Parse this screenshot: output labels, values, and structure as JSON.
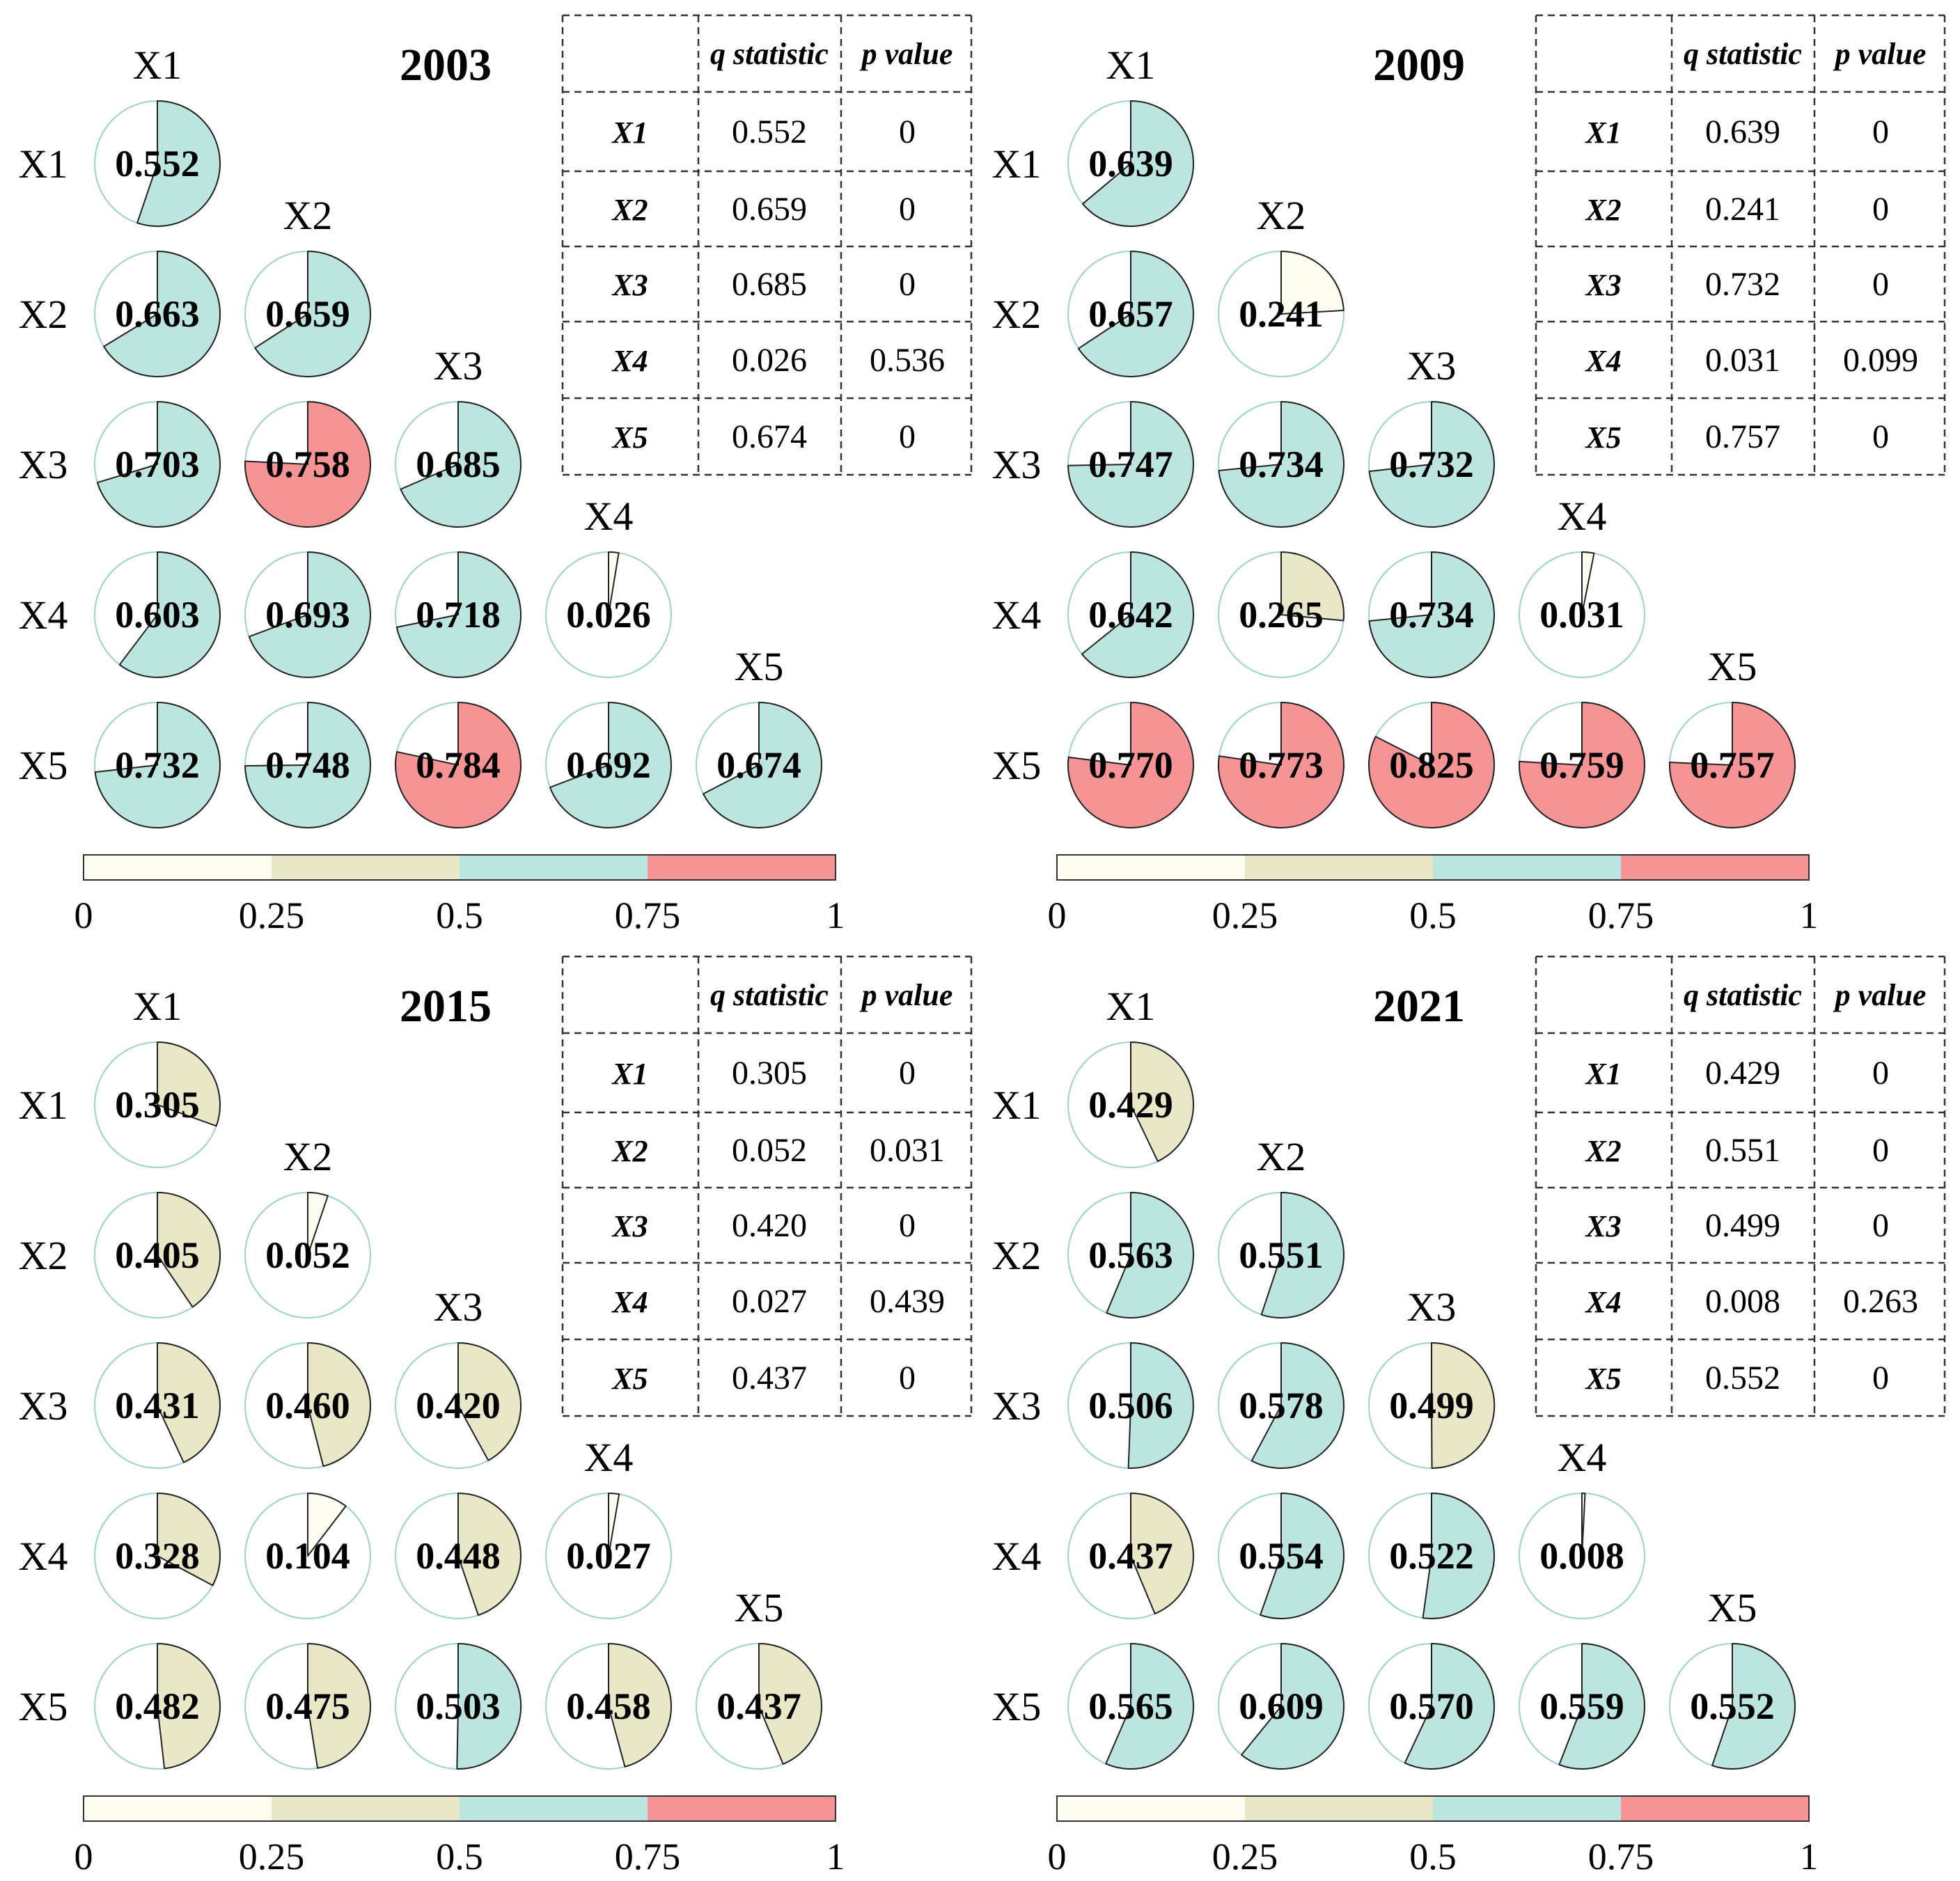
{
  "chart_data": [
    {
      "type": "pie-matrix",
      "title": "2003",
      "variables": [
        "X1",
        "X2",
        "X3",
        "X4",
        "X5"
      ],
      "matrix": [
        [
          0.552
        ],
        [
          0.663,
          0.659
        ],
        [
          0.703,
          0.758,
          0.685
        ],
        [
          0.603,
          0.693,
          0.718,
          0.026
        ],
        [
          0.732,
          0.748,
          0.784,
          0.692,
          0.674
        ]
      ],
      "matrix_labels": [
        [
          "0.552"
        ],
        [
          "0.663",
          "0.659"
        ],
        [
          "0.703",
          "0.758",
          "0.685"
        ],
        [
          "0.603",
          "0.693",
          "0.718",
          "0.026"
        ],
        [
          "0.732",
          "0.748",
          "0.784",
          "0.692",
          "0.674"
        ]
      ],
      "table": {
        "headers": [
          "",
          "q statistic",
          "p value"
        ],
        "rows": [
          [
            "X1",
            "0.552",
            "0"
          ],
          [
            "X2",
            "0.659",
            "0"
          ],
          [
            "X3",
            "0.685",
            "0"
          ],
          [
            "X4",
            "0.026",
            "0.536"
          ],
          [
            "X5",
            "0.674",
            "0"
          ]
        ]
      }
    },
    {
      "type": "pie-matrix",
      "title": "2009",
      "variables": [
        "X1",
        "X2",
        "X3",
        "X4",
        "X5"
      ],
      "matrix": [
        [
          0.639
        ],
        [
          0.657,
          0.241
        ],
        [
          0.747,
          0.734,
          0.732
        ],
        [
          0.642,
          0.265,
          0.734,
          0.031
        ],
        [
          0.77,
          0.773,
          0.825,
          0.759,
          0.757
        ]
      ],
      "matrix_labels": [
        [
          "0.639"
        ],
        [
          "0.657",
          "0.241"
        ],
        [
          "0.747",
          "0.734",
          "0.732"
        ],
        [
          "0.642",
          "0.265",
          "0.734",
          "0.031"
        ],
        [
          "0.770",
          "0.773",
          "0.825",
          "0.759",
          "0.757"
        ]
      ],
      "table": {
        "headers": [
          "",
          "q statistic",
          "p value"
        ],
        "rows": [
          [
            "X1",
            "0.639",
            "0"
          ],
          [
            "X2",
            "0.241",
            "0"
          ],
          [
            "X3",
            "0.732",
            "0"
          ],
          [
            "X4",
            "0.031",
            "0.099"
          ],
          [
            "X5",
            "0.757",
            "0"
          ]
        ]
      }
    },
    {
      "type": "pie-matrix",
      "title": "2015",
      "variables": [
        "X1",
        "X2",
        "X3",
        "X4",
        "X5"
      ],
      "matrix": [
        [
          0.305
        ],
        [
          0.405,
          0.052
        ],
        [
          0.431,
          0.46,
          0.42
        ],
        [
          0.328,
          0.104,
          0.448,
          0.027
        ],
        [
          0.482,
          0.475,
          0.503,
          0.458,
          0.437
        ]
      ],
      "matrix_labels": [
        [
          "0.305"
        ],
        [
          "0.405",
          "0.052"
        ],
        [
          "0.431",
          "0.460",
          "0.420"
        ],
        [
          "0.328",
          "0.104",
          "0.448",
          "0.027"
        ],
        [
          "0.482",
          "0.475",
          "0.503",
          "0.458",
          "0.437"
        ]
      ],
      "table": {
        "headers": [
          "",
          "q statistic",
          "p value"
        ],
        "rows": [
          [
            "X1",
            "0.305",
            "0"
          ],
          [
            "X2",
            "0.052",
            "0.031"
          ],
          [
            "X3",
            "0.420",
            "0"
          ],
          [
            "X4",
            "0.027",
            "0.439"
          ],
          [
            "X5",
            "0.437",
            "0"
          ]
        ]
      }
    },
    {
      "type": "pie-matrix",
      "title": "2021",
      "variables": [
        "X1",
        "X2",
        "X3",
        "X4",
        "X5"
      ],
      "matrix": [
        [
          0.429
        ],
        [
          0.563,
          0.551
        ],
        [
          0.506,
          0.578,
          0.499
        ],
        [
          0.437,
          0.554,
          0.522,
          0.008
        ],
        [
          0.565,
          0.609,
          0.57,
          0.559,
          0.552
        ]
      ],
      "matrix_labels": [
        [
          "0.429"
        ],
        [
          "0.563",
          "0.551"
        ],
        [
          "0.506",
          "0.578",
          "0.499"
        ],
        [
          "0.437",
          "0.554",
          "0.522",
          "0.008"
        ],
        [
          "0.565",
          "0.609",
          "0.570",
          "0.559",
          "0.552"
        ]
      ],
      "table": {
        "headers": [
          "",
          "q statistic",
          "p value"
        ],
        "rows": [
          [
            "X1",
            "0.429",
            "0"
          ],
          [
            "X2",
            "0.551",
            "0"
          ],
          [
            "X3",
            "0.499",
            "0"
          ],
          [
            "X4",
            "0.008",
            "0.263"
          ],
          [
            "X5",
            "0.552",
            "0"
          ]
        ]
      }
    }
  ],
  "colorbar": {
    "range": [
      0,
      1
    ],
    "bins": [
      {
        "from": 0,
        "to": 0.25,
        "color": "#fdfdf0"
      },
      {
        "from": 0.25,
        "to": 0.5,
        "color": "#e8e8c8"
      },
      {
        "from": 0.5,
        "to": 0.75,
        "color": "#bde5df"
      },
      {
        "from": 0.75,
        "to": 1,
        "color": "#f69395"
      }
    ],
    "tick_labels": [
      "0",
      "0.25",
      "0.5",
      "0.75",
      "1"
    ]
  },
  "colors": {
    "outline": "#222222",
    "outline_faint": "#9ad3c9",
    "table_border": "#333333"
  }
}
